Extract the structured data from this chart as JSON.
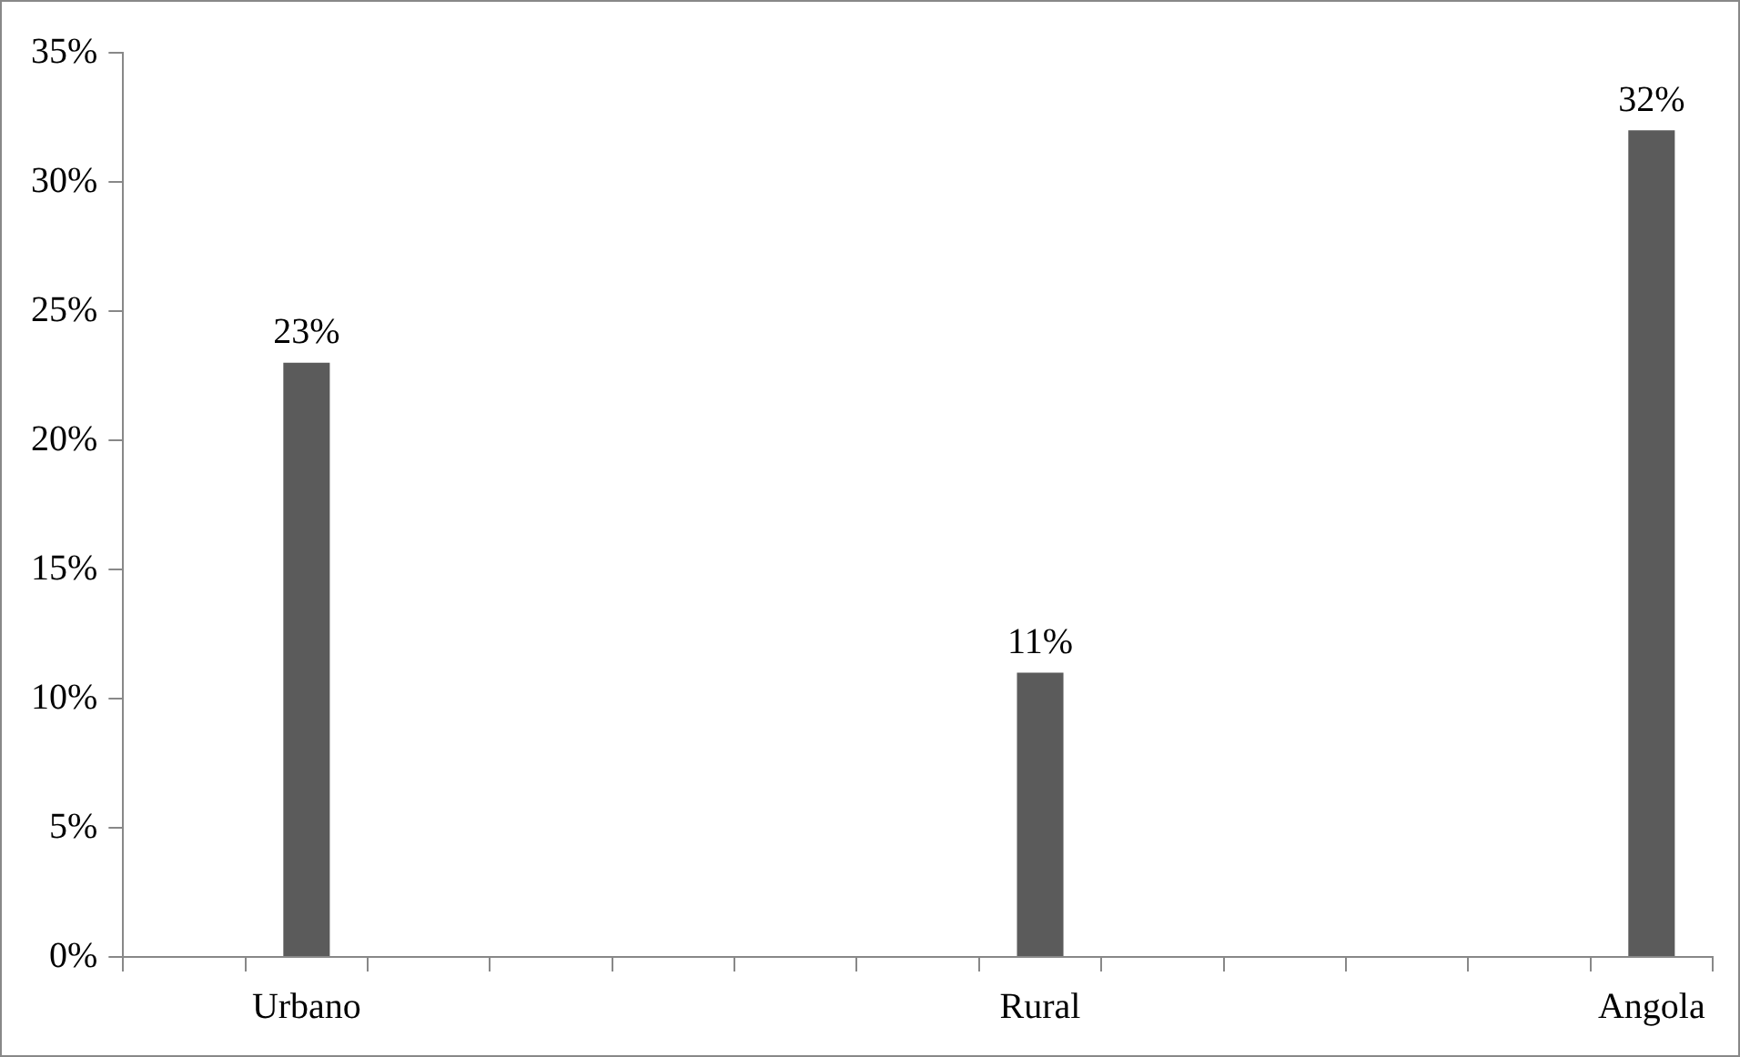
{
  "chart_data": {
    "type": "bar",
    "categories": [
      null,
      "Urbano",
      null,
      null,
      null,
      null,
      null,
      "Rural",
      null,
      null,
      null,
      null,
      "Angola"
    ],
    "values": [
      null,
      23,
      null,
      null,
      null,
      null,
      null,
      11,
      null,
      null,
      null,
      null,
      32
    ],
    "color": "#5b5b5b",
    "ylim": [
      0,
      35
    ],
    "yticks": [
      {
        "value": 0,
        "label": "0%"
      },
      {
        "value": 5,
        "label": "5%"
      },
      {
        "value": 10,
        "label": "10%"
      },
      {
        "value": 15,
        "label": "15%"
      },
      {
        "value": 20,
        "label": "20%"
      },
      {
        "value": 25,
        "label": "25%"
      },
      {
        "value": 30,
        "label": "30%"
      },
      {
        "value": 35,
        "label": "35%"
      }
    ],
    "value_labels": [
      null,
      "23%",
      null,
      null,
      null,
      null,
      null,
      "11%",
      null,
      null,
      null,
      null,
      "32%"
    ],
    "grid": false,
    "legend": false
  }
}
